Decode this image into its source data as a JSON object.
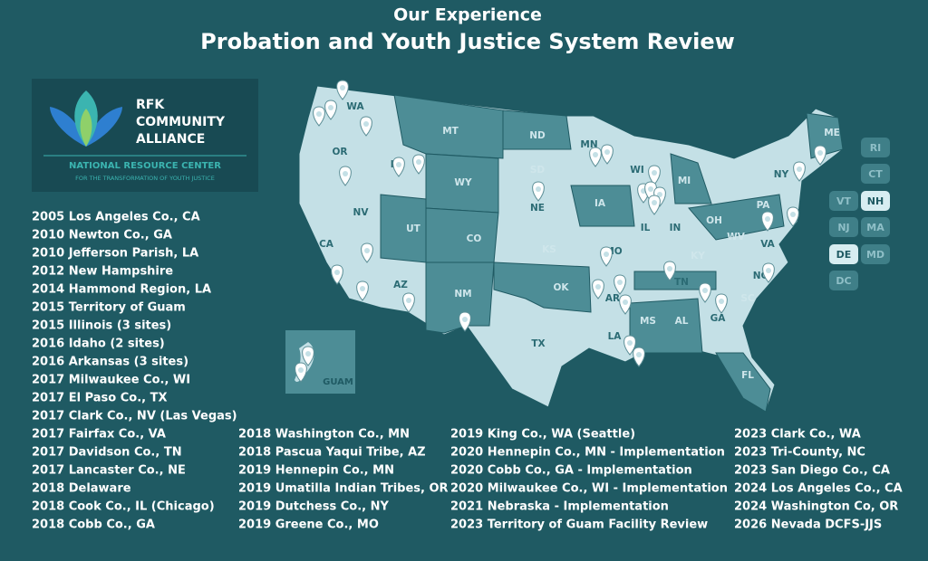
{
  "header": {
    "kicker": "Our Experience",
    "title": "Probation and Youth Justice System Review"
  },
  "logo": {
    "name_lines": [
      "RFK",
      "COMMUNITY",
      "ALLIANCE"
    ],
    "subtitle": "NATIONAL RESOURCE CENTER",
    "tagline": "FOR THE TRANSFORMATION OF YOUTH JUSTICE"
  },
  "map": {
    "state_labels": [
      "WA",
      "OR",
      "ID",
      "MT",
      "ND",
      "MN",
      "WI",
      "MI",
      "NY",
      "ME",
      "SD",
      "WY",
      "NV",
      "CA",
      "UT",
      "CO",
      "NE",
      "IA",
      "IL",
      "IN",
      "OH",
      "PA",
      "KS",
      "MO",
      "KY",
      "WV",
      "VA",
      "AZ",
      "NM",
      "OK",
      "AR",
      "TN",
      "NC",
      "SC",
      "MS",
      "AL",
      "GA",
      "TX",
      "LA",
      "FL"
    ],
    "small_states": [
      "RI",
      "CT",
      "VT",
      "NH",
      "NJ",
      "MA",
      "DE",
      "MD",
      "DC"
    ],
    "guam_label": "GUAM"
  },
  "sites": {
    "columns": [
      [
        "2005 Los Angeles Co., CA",
        "2010 Newton Co., GA",
        "2010 Jefferson Parish, LA",
        "2012 New Hampshire",
        "2014 Hammond Region, LA",
        "2015 Territory of Guam",
        "2015 Illinois (3 sites)",
        "2016 Idaho (2 sites)",
        "2016 Arkansas (3 sites)",
        "2017 Milwaukee Co., WI",
        "2017 El Paso Co., TX",
        "2017 Clark Co., NV (Las Vegas)",
        "2017 Fairfax Co., VA",
        "2017 Davidson Co., TN",
        "2017 Lancaster Co., NE",
        "2018 Delaware",
        "2018 Cook Co., IL (Chicago)",
        "2018 Cobb Co., GA"
      ],
      [
        "2018 Washington Co., MN",
        "2018 Pascua Yaqui Tribe, AZ",
        "2019 Hennepin Co., MN",
        "2019 Umatilla Indian Tribes, OR",
        "2019 Dutchess Co., NY",
        "2019 Greene Co., MO"
      ],
      [
        "2019 King Co., WA (Seattle)",
        "2020 Hennepin Co., MN - Implementation",
        "2020 Cobb Co., GA - Implementation",
        "2020 Milwaukee Co., WI - Implementation",
        "2021 Nebraska - Implementation",
        "2023 Territory of Guam Facility Review"
      ],
      [
        "2023 Clark Co., WA",
        "2023 Tri-County, NC",
        "2023 San Diego Co., CA",
        "2024 Los Angeles Co., CA",
        "2024 Washington Co, OR",
        "2026 Nevada DCFS-JJS"
      ]
    ]
  }
}
